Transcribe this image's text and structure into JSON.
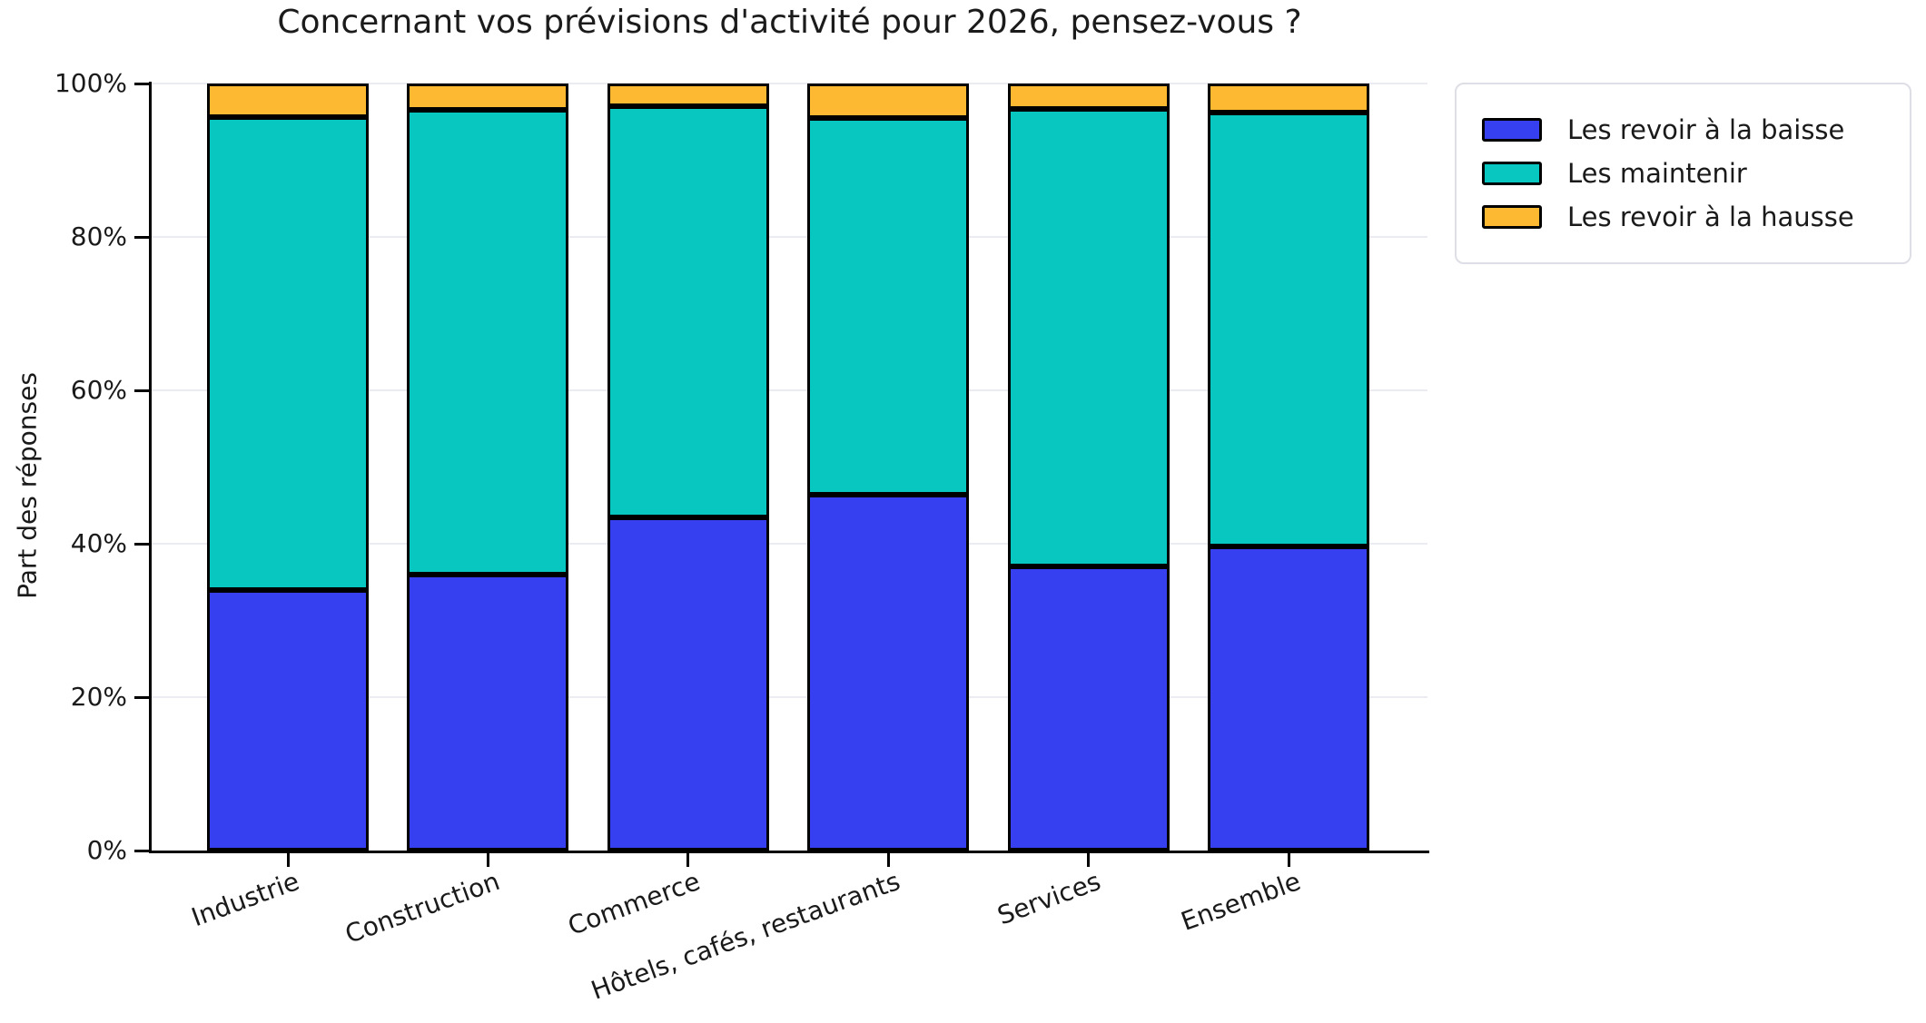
{
  "chart_data": {
    "type": "bar",
    "stacked": true,
    "orientation": "vertical",
    "title": "Concernant vos prévisions d'activité pour 2026, pensez-vous ?",
    "ylabel": "Part des réponses",
    "xlabel": "",
    "unit": "%",
    "categories": [
      "Industrie",
      "Construction",
      "Commerce",
      "Hôtels, cafés, restaurants",
      "Services",
      "Ensemble"
    ],
    "series": [
      {
        "name": "Les revoir à la baisse",
        "color": "#3640F0",
        "values": [
          34.0,
          36.0,
          43.4,
          46.4,
          37.0,
          39.6
        ]
      },
      {
        "name": "Les maintenir",
        "color": "#08C7C0",
        "values": [
          61.6,
          60.6,
          53.6,
          49.1,
          59.7,
          56.6
        ]
      },
      {
        "name": "Les revoir à la hausse",
        "color": "#FDB931",
        "values": [
          4.4,
          3.4,
          3.0,
          4.5,
          3.3,
          3.8
        ]
      }
    ],
    "ylim": [
      0,
      100
    ],
    "yticks_values": [
      0,
      20,
      40,
      60,
      80,
      100
    ],
    "yticks_labels": [
      "0%",
      "20%",
      "40%",
      "60%",
      "80%",
      "100%"
    ],
    "grid": true,
    "grid_color": "#EBEBF2",
    "bar_edge_color": "#000000",
    "legend_position": "outside-upper-right"
  }
}
